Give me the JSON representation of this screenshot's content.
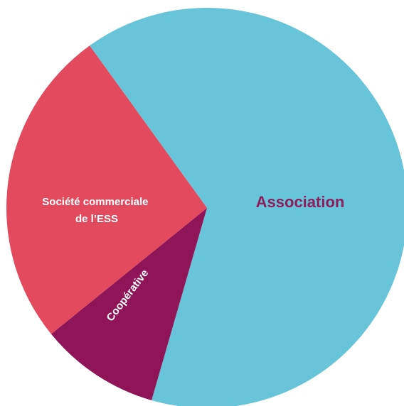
{
  "chart_data": {
    "type": "pie",
    "slices": [
      {
        "id": "association",
        "label": "Association",
        "value": 64.4,
        "color": "#68c4d8",
        "label_color": "#8e1d5d"
      },
      {
        "id": "cooperative",
        "label": "Coopérative",
        "value": 9.7,
        "color": "#8f1558",
        "label_color": "#ffffff"
      },
      {
        "id": "societe",
        "label_lines": [
          "Société commerciale",
          "de l’ESS"
        ],
        "value": 25.9,
        "color": "#e34a5e",
        "label_color": "#ffffff"
      }
    ],
    "title": "",
    "legend": "none",
    "start_angle_deg": -125.8,
    "direction": "clockwise"
  }
}
